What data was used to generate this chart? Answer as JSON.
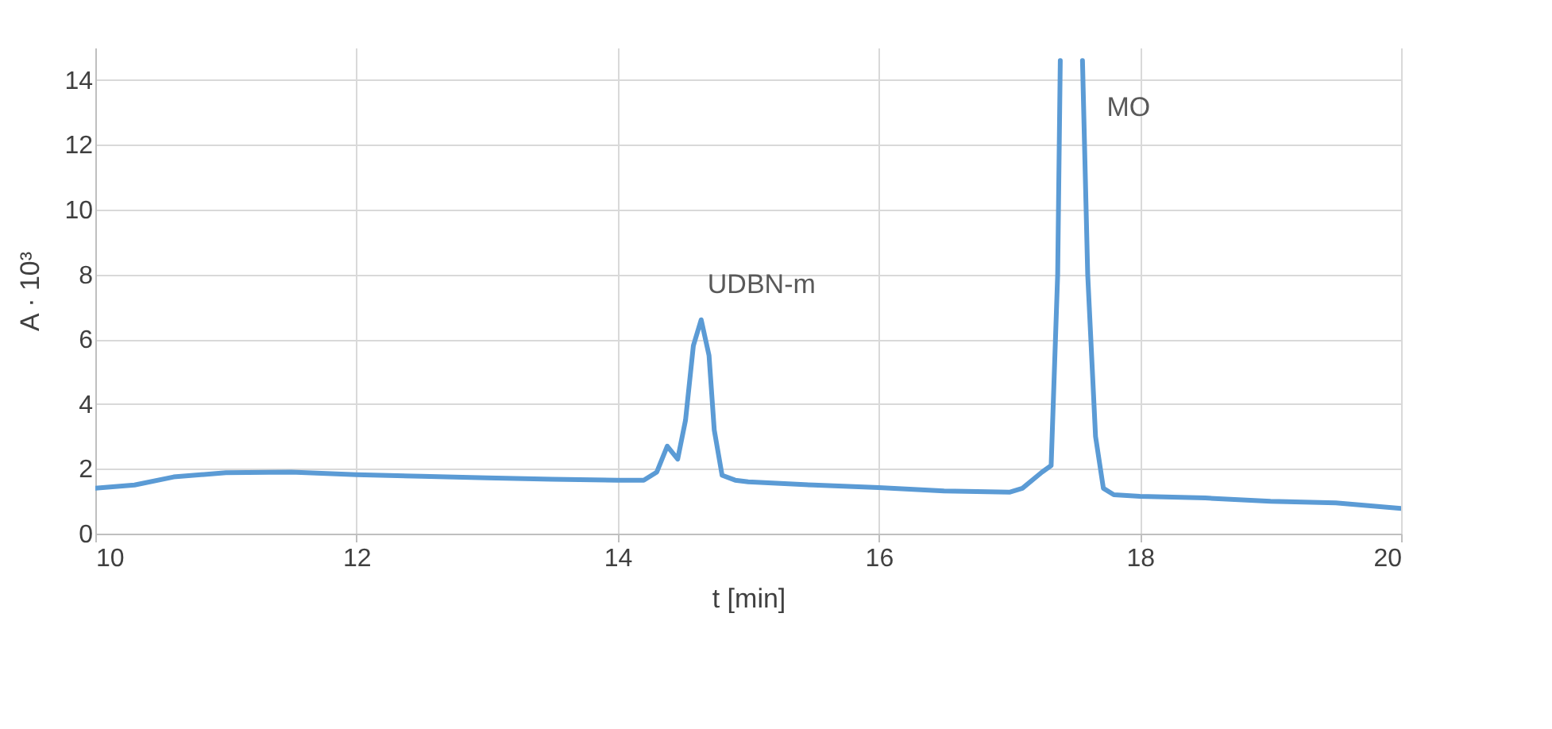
{
  "chart_data": {
    "type": "line",
    "xlabel": "t [min]",
    "ylabel": "A · 10³",
    "xlim": [
      10,
      20
    ],
    "xticks": [
      10,
      12,
      14,
      16,
      18,
      20
    ],
    "ylim": [
      0,
      15
    ],
    "yticks": [
      0,
      2,
      4,
      6,
      8,
      10,
      12,
      14
    ],
    "grid": true,
    "marker": "none",
    "line_style": "solid",
    "series": [
      {
        "color": "#5b9bd5",
        "x": [
          10,
          10.3,
          10.6,
          11,
          11.5,
          12,
          12.5,
          13,
          13.5,
          14,
          14.2,
          14.3,
          14.38,
          14.46,
          14.52,
          14.58,
          14.64,
          14.7,
          14.74,
          14.8,
          14.9,
          15,
          15.5,
          16,
          16.5,
          17,
          17.1,
          17.25,
          17.32,
          17.37,
          17.39,
          17.41,
          17.54,
          17.56,
          17.6,
          17.66,
          17.72,
          17.8,
          18,
          18.5,
          19,
          19.5,
          20
        ],
        "values": [
          1.4,
          1.5,
          1.75,
          1.88,
          1.9,
          1.82,
          1.77,
          1.72,
          1.68,
          1.65,
          1.65,
          1.9,
          2.7,
          2.3,
          3.5,
          5.8,
          6.6,
          5.5,
          3.2,
          1.8,
          1.65,
          1.6,
          1.5,
          1.42,
          1.32,
          1.28,
          1.4,
          1.9,
          2.1,
          8,
          14.6,
          null,
          null,
          14.6,
          8,
          3,
          1.4,
          1.2,
          1.15,
          1.1,
          1.0,
          0.95,
          0.78
        ]
      }
    ],
    "annotations": [
      {
        "text": "UDBN-m",
        "x": 14.64,
        "y": 6.6
      },
      {
        "text": "MO",
        "x": 17.56,
        "y": 14.6
      }
    ]
  }
}
